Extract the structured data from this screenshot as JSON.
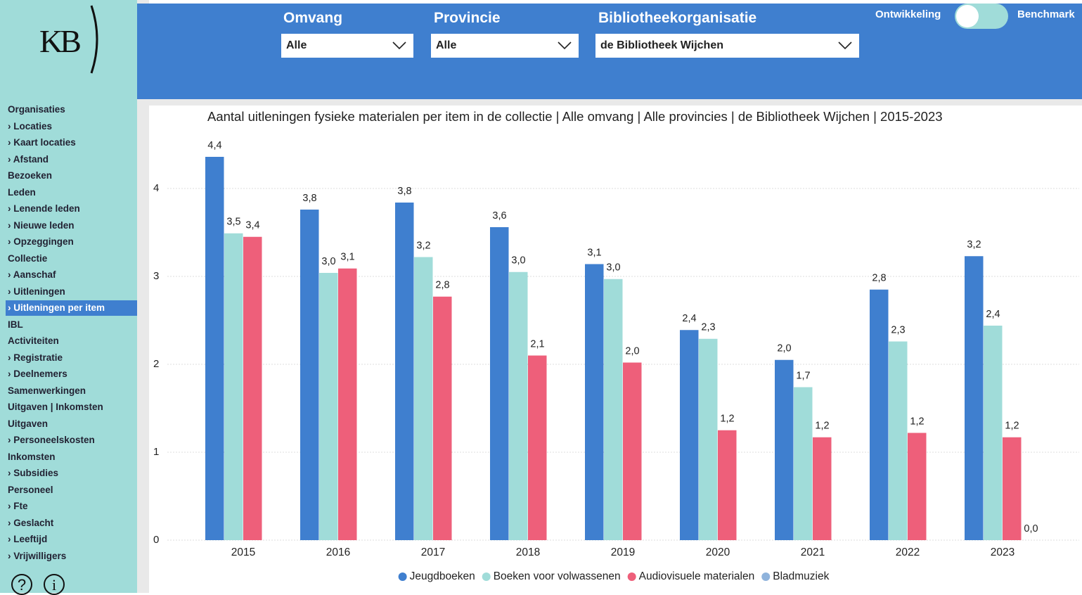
{
  "logo": "KB",
  "nav": {
    "items": [
      "Organisaties",
      "› Locaties",
      "› Kaart locaties",
      "› Afstand",
      "Bezoeken",
      "Leden",
      "› Lenende leden",
      "› Nieuwe leden",
      "› Opzeggingen",
      "Collectie",
      "› Aanschaf",
      "› Uitleningen",
      "› Uitleningen per item",
      "IBL",
      "Activiteiten",
      "› Registratie",
      "› Deelnemers",
      "Samenwerkingen",
      "Uitgaven | Inkomsten",
      "Uitgaven",
      "› Personeelskosten",
      "Inkomsten",
      "› Subsidies",
      "Personeel",
      "› Fte",
      "› Geslacht",
      "› Leeftijd",
      "› Vrijwilligers"
    ],
    "selected": 12
  },
  "filters": [
    {
      "label": "Omvang",
      "value": "Alle"
    },
    {
      "label": "Provincie",
      "value": "Alle"
    },
    {
      "label": "Bibliotheekorganisatie",
      "value": "de Bibliotheek Wijchen"
    }
  ],
  "toggle": {
    "left": "Ontwikkeling",
    "right": "Benchmark"
  },
  "help_icons": [
    "?",
    "i"
  ],
  "chart_data": {
    "type": "bar",
    "title": "Aantal uitleningen fysieke materialen per item in de collectie | Alle omvang | Alle provincies | de Bibliotheek Wijchen | 2015-2023",
    "categories": [
      "2015",
      "2016",
      "2017",
      "2018",
      "2019",
      "2020",
      "2021",
      "2022",
      "2023"
    ],
    "series": [
      {
        "name": "Jeugdboeken",
        "color": "#3f7fcf",
        "values": [
          4.36,
          3.76,
          3.84,
          3.56,
          3.14,
          2.39,
          2.05,
          2.85,
          3.23
        ],
        "value_labels": [
          "4,4",
          "3,8",
          "3,8",
          "3,6",
          "3,1",
          "2,4",
          "2,0",
          "2,8",
          "3,2"
        ]
      },
      {
        "name": "Boeken voor volwassenen",
        "color": "#a0dcd9",
        "values": [
          3.49,
          3.04,
          3.22,
          3.05,
          2.97,
          2.29,
          1.74,
          2.26,
          2.44
        ],
        "value_labels": [
          "3,5",
          "3,0",
          "3,2",
          "3,0",
          "3,0",
          "2,3",
          "1,7",
          "2,3",
          "2,4"
        ]
      },
      {
        "name": "Audiovisuele materialen",
        "color": "#ee5f7a",
        "values": [
          3.45,
          3.09,
          2.77,
          2.1,
          2.02,
          1.25,
          1.17,
          1.22,
          1.17
        ],
        "value_labels": [
          "3,4",
          "3,1",
          "2,8",
          "2,1",
          "2,0",
          "1,2",
          "1,2",
          "1,2",
          "1,2"
        ]
      },
      {
        "name": "Bladmuziek",
        "color": "#8fb3dc",
        "values": [
          null,
          null,
          null,
          null,
          null,
          null,
          null,
          null,
          0
        ],
        "value_labels": [
          null,
          null,
          null,
          null,
          null,
          null,
          null,
          null,
          "0,0"
        ]
      }
    ],
    "ylim": [
      0,
      4.7
    ],
    "yticks": [
      0,
      1,
      2,
      3,
      4
    ],
    "grid": true,
    "legend": "bottom"
  }
}
